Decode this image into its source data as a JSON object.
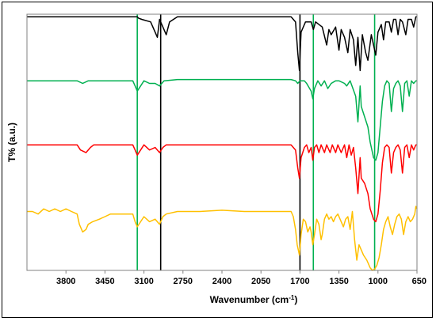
{
  "chart_data": {
    "type": "line",
    "xlabel": "Wavenumber (cm",
    "xlabel_sup": "-1",
    "xlabel_tail": ")",
    "ylabel": "T% (a.u.)",
    "x_reversed": true,
    "xlim": [
      4150,
      650
    ],
    "ylim": [
      0,
      100
    ],
    "x_ticks": [
      3800,
      3450,
      3100,
      2750,
      2400,
      2050,
      1700,
      1350,
      1000,
      650
    ],
    "x_tick_labels": [
      "3800",
      "3450",
      "3100",
      "2750",
      "2400",
      "2050",
      "1700",
      "1350",
      "1000",
      "650"
    ],
    "vertical_markers": [
      {
        "x": 3160,
        "color": "#00b050"
      },
      {
        "x": 2950,
        "color": "#000000"
      },
      {
        "x": 1700,
        "color": "#000000"
      },
      {
        "x": 1580,
        "color": "#00b050"
      },
      {
        "x": 1030,
        "color": "#00b050"
      }
    ],
    "series": [
      {
        "color": "#000000",
        "points": [
          [
            4150,
            99
          ],
          [
            3700,
            99
          ],
          [
            3500,
            99
          ],
          [
            3160,
            99
          ],
          [
            3150,
            98.5
          ],
          [
            3120,
            98
          ],
          [
            3040,
            97
          ],
          [
            3000,
            93
          ],
          [
            2980,
            91
          ],
          [
            2960,
            98
          ],
          [
            2930,
            95
          ],
          [
            2900,
            92
          ],
          [
            2870,
            97
          ],
          [
            2800,
            99
          ],
          [
            2500,
            99
          ],
          [
            2100,
            99
          ],
          [
            1780,
            99
          ],
          [
            1740,
            97
          ],
          [
            1720,
            85
          ],
          [
            1705,
            78
          ],
          [
            1690,
            93
          ],
          [
            1650,
            97
          ],
          [
            1600,
            97
          ],
          [
            1580,
            94
          ],
          [
            1560,
            97
          ],
          [
            1500,
            95
          ],
          [
            1460,
            88
          ],
          [
            1440,
            94
          ],
          [
            1420,
            92
          ],
          [
            1380,
            95
          ],
          [
            1350,
            86
          ],
          [
            1330,
            94
          ],
          [
            1300,
            91
          ],
          [
            1270,
            85
          ],
          [
            1250,
            94
          ],
          [
            1220,
            90
          ],
          [
            1200,
            80
          ],
          [
            1180,
            91
          ],
          [
            1160,
            78
          ],
          [
            1140,
            92
          ],
          [
            1110,
            85
          ],
          [
            1090,
            82
          ],
          [
            1060,
            92
          ],
          [
            1040,
            88
          ],
          [
            1020,
            84
          ],
          [
            1000,
            93
          ],
          [
            970,
            96
          ],
          [
            950,
            90
          ],
          [
            930,
            97
          ],
          [
            900,
            97
          ],
          [
            880,
            93
          ],
          [
            860,
            98
          ],
          [
            840,
            98
          ],
          [
            820,
            92
          ],
          [
            800,
            98
          ],
          [
            780,
            97
          ],
          [
            750,
            92
          ],
          [
            730,
            98
          ],
          [
            700,
            98
          ],
          [
            680,
            95
          ],
          [
            660,
            99
          ],
          [
            650,
            99
          ]
        ]
      },
      {
        "color": "#00b050",
        "points": [
          [
            4150,
            74
          ],
          [
            3700,
            74
          ],
          [
            3650,
            73
          ],
          [
            3600,
            74
          ],
          [
            3200,
            74
          ],
          [
            3180,
            72
          ],
          [
            3160,
            70
          ],
          [
            3130,
            72
          ],
          [
            3100,
            74
          ],
          [
            3050,
            73
          ],
          [
            3000,
            73
          ],
          [
            2960,
            72
          ],
          [
            2920,
            74
          ],
          [
            2800,
            74.5
          ],
          [
            2400,
            74.5
          ],
          [
            2000,
            74.5
          ],
          [
            1780,
            74.5
          ],
          [
            1740,
            74
          ],
          [
            1720,
            73
          ],
          [
            1700,
            74
          ],
          [
            1660,
            74
          ],
          [
            1640,
            73
          ],
          [
            1600,
            70
          ],
          [
            1585,
            67
          ],
          [
            1570,
            71
          ],
          [
            1540,
            74
          ],
          [
            1510,
            72
          ],
          [
            1480,
            74
          ],
          [
            1450,
            71
          ],
          [
            1420,
            73
          ],
          [
            1380,
            74
          ],
          [
            1350,
            74
          ],
          [
            1300,
            73
          ],
          [
            1280,
            72
          ],
          [
            1250,
            74
          ],
          [
            1200,
            68
          ],
          [
            1180,
            58
          ],
          [
            1160,
            72
          ],
          [
            1150,
            64
          ],
          [
            1120,
            60
          ],
          [
            1090,
            56
          ],
          [
            1070,
            50
          ],
          [
            1040,
            44
          ],
          [
            1020,
            43
          ],
          [
            1000,
            46
          ],
          [
            980,
            56
          ],
          [
            960,
            66
          ],
          [
            940,
            72
          ],
          [
            920,
            74
          ],
          [
            900,
            73
          ],
          [
            880,
            62
          ],
          [
            860,
            71
          ],
          [
            840,
            73
          ],
          [
            820,
            74
          ],
          [
            800,
            72
          ],
          [
            780,
            62
          ],
          [
            760,
            73
          ],
          [
            740,
            74
          ],
          [
            720,
            68
          ],
          [
            700,
            74
          ],
          [
            680,
            73
          ],
          [
            660,
            74
          ],
          [
            650,
            74
          ]
        ]
      },
      {
        "color": "#ff0000",
        "points": [
          [
            4150,
            49
          ],
          [
            3700,
            49
          ],
          [
            3670,
            47
          ],
          [
            3620,
            46
          ],
          [
            3580,
            48
          ],
          [
            3550,
            49
          ],
          [
            3200,
            49
          ],
          [
            3180,
            47
          ],
          [
            3160,
            45
          ],
          [
            3130,
            47
          ],
          [
            3100,
            49
          ],
          [
            3050,
            47
          ],
          [
            3000,
            48
          ],
          [
            2960,
            46
          ],
          [
            2930,
            48
          ],
          [
            2900,
            49
          ],
          [
            2800,
            49
          ],
          [
            2400,
            49
          ],
          [
            2000,
            49
          ],
          [
            1780,
            49
          ],
          [
            1740,
            47
          ],
          [
            1720,
            40
          ],
          [
            1705,
            36
          ],
          [
            1690,
            44
          ],
          [
            1660,
            48
          ],
          [
            1640,
            49
          ],
          [
            1620,
            46
          ],
          [
            1600,
            48
          ],
          [
            1585,
            43
          ],
          [
            1570,
            48
          ],
          [
            1550,
            49
          ],
          [
            1530,
            46
          ],
          [
            1510,
            49
          ],
          [
            1480,
            46
          ],
          [
            1460,
            49
          ],
          [
            1430,
            46
          ],
          [
            1410,
            49
          ],
          [
            1380,
            46
          ],
          [
            1360,
            49
          ],
          [
            1330,
            46
          ],
          [
            1300,
            49
          ],
          [
            1280,
            44
          ],
          [
            1260,
            49
          ],
          [
            1240,
            45
          ],
          [
            1220,
            48
          ],
          [
            1200,
            40
          ],
          [
            1180,
            30
          ],
          [
            1160,
            44
          ],
          [
            1150,
            36
          ],
          [
            1120,
            34
          ],
          [
            1090,
            30
          ],
          [
            1070,
            24
          ],
          [
            1040,
            20
          ],
          [
            1020,
            19
          ],
          [
            1000,
            22
          ],
          [
            980,
            31
          ],
          [
            960,
            42
          ],
          [
            940,
            48
          ],
          [
            920,
            49
          ],
          [
            900,
            48
          ],
          [
            880,
            38
          ],
          [
            860,
            46
          ],
          [
            840,
            48
          ],
          [
            820,
            49
          ],
          [
            800,
            47
          ],
          [
            780,
            38
          ],
          [
            760,
            48
          ],
          [
            740,
            49
          ],
          [
            720,
            44
          ],
          [
            700,
            49
          ],
          [
            680,
            47
          ],
          [
            660,
            49
          ],
          [
            650,
            49
          ]
        ]
      },
      {
        "color": "#ffc000",
        "points": [
          [
            4150,
            23
          ],
          [
            4100,
            23
          ],
          [
            4050,
            22
          ],
          [
            4000,
            24
          ],
          [
            3950,
            23
          ],
          [
            3900,
            24
          ],
          [
            3850,
            23
          ],
          [
            3800,
            24
          ],
          [
            3750,
            23
          ],
          [
            3700,
            22
          ],
          [
            3680,
            18
          ],
          [
            3650,
            15
          ],
          [
            3620,
            16
          ],
          [
            3600,
            18
          ],
          [
            3560,
            19
          ],
          [
            3500,
            20
          ],
          [
            3450,
            21
          ],
          [
            3400,
            22
          ],
          [
            3300,
            22
          ],
          [
            3200,
            22
          ],
          [
            3180,
            19
          ],
          [
            3160,
            17
          ],
          [
            3130,
            19
          ],
          [
            3100,
            21
          ],
          [
            3050,
            19
          ],
          [
            3000,
            20
          ],
          [
            2960,
            18
          ],
          [
            2930,
            21
          ],
          [
            2900,
            22
          ],
          [
            2800,
            23
          ],
          [
            2600,
            23
          ],
          [
            2400,
            23.5
          ],
          [
            2200,
            23
          ],
          [
            2000,
            23
          ],
          [
            1800,
            23
          ],
          [
            1780,
            23
          ],
          [
            1760,
            21
          ],
          [
            1740,
            16
          ],
          [
            1725,
            10
          ],
          [
            1705,
            6
          ],
          [
            1690,
            14
          ],
          [
            1670,
            20
          ],
          [
            1650,
            19
          ],
          [
            1630,
            15
          ],
          [
            1610,
            17
          ],
          [
            1600,
            15
          ],
          [
            1585,
            10
          ],
          [
            1570,
            14
          ],
          [
            1550,
            20
          ],
          [
            1530,
            18
          ],
          [
            1510,
            12
          ],
          [
            1500,
            14
          ],
          [
            1480,
            20
          ],
          [
            1460,
            22
          ],
          [
            1440,
            20
          ],
          [
            1420,
            21
          ],
          [
            1400,
            19
          ],
          [
            1380,
            21
          ],
          [
            1360,
            22
          ],
          [
            1340,
            20
          ],
          [
            1310,
            17
          ],
          [
            1290,
            20
          ],
          [
            1270,
            21
          ],
          [
            1250,
            16
          ],
          [
            1230,
            23
          ],
          [
            1210,
            12
          ],
          [
            1190,
            4
          ],
          [
            1170,
            10
          ],
          [
            1150,
            8
          ],
          [
            1130,
            6
          ],
          [
            1100,
            4
          ],
          [
            1070,
            1
          ],
          [
            1050,
            0
          ],
          [
            1030,
            0.5
          ],
          [
            1010,
            2
          ],
          [
            990,
            5
          ],
          [
            970,
            10
          ],
          [
            950,
            16
          ],
          [
            930,
            19
          ],
          [
            910,
            21
          ],
          [
            890,
            17
          ],
          [
            870,
            14
          ],
          [
            850,
            18
          ],
          [
            830,
            21
          ],
          [
            810,
            22
          ],
          [
            790,
            20
          ],
          [
            770,
            14
          ],
          [
            750,
            19
          ],
          [
            730,
            21
          ],
          [
            710,
            19
          ],
          [
            690,
            20
          ],
          [
            670,
            22
          ],
          [
            660,
            25
          ],
          [
            650,
            24
          ]
        ]
      }
    ]
  }
}
